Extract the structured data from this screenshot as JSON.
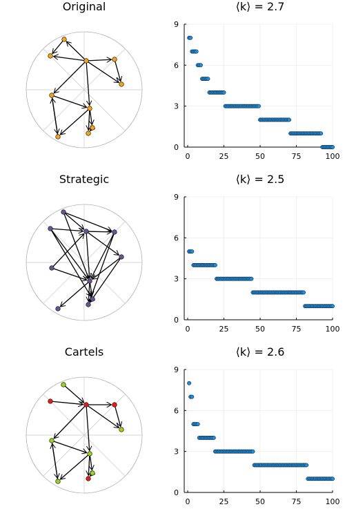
{
  "figure": {
    "network_panels": [
      {
        "title": "Original",
        "node_colors": [
          "#f5a319",
          "#f5a319",
          "#f5a319",
          "#f5a319",
          "#f5a319",
          "#f5a319",
          "#f5a319",
          "#f5a319",
          "#f5a319"
        ]
      },
      {
        "title": "Strategic",
        "node_colors": [
          "#6a5496",
          "#6a5496",
          "#6a5496",
          "#6a5496",
          "#6a5496",
          "#6a5496",
          "#6a5496",
          "#6a5496",
          "#6a5496"
        ]
      },
      {
        "title": "Cartels",
        "node_colors": [
          "#9bd31a",
          "#e81b1b",
          "#e81b1b",
          "#e81b1b",
          "#9bd31a",
          "#9bd31a",
          "#9bd31a",
          "#9bd31a",
          "#e81b1b",
          "#9bd31a"
        ]
      }
    ],
    "marker_color": "#1e8fe0",
    "grid_color": "#e6e6e6"
  },
  "chart_data": [
    {
      "type": "scatter",
      "title": "⟨k⟩ = 2.7",
      "xlabel": "",
      "ylabel": "",
      "xlim": [
        0,
        100
      ],
      "ylim": [
        0,
        9
      ],
      "xticks": [
        "0",
        "25",
        "50",
        "75",
        "100"
      ],
      "yticks": [
        "0",
        "3",
        "6",
        "9"
      ],
      "grid": true,
      "segments": [
        {
          "from": 1,
          "to": 2,
          "value": 8
        },
        {
          "from": 3,
          "to": 6,
          "value": 7
        },
        {
          "from": 7,
          "to": 9,
          "value": 6
        },
        {
          "from": 10,
          "to": 14,
          "value": 5
        },
        {
          "from": 15,
          "to": 25,
          "value": 4
        },
        {
          "from": 26,
          "to": 49,
          "value": 3
        },
        {
          "from": 50,
          "to": 70,
          "value": 2
        },
        {
          "from": 71,
          "to": 92,
          "value": 1
        },
        {
          "from": 93,
          "to": 100,
          "value": 0
        }
      ]
    },
    {
      "type": "scatter",
      "title": "⟨k⟩ = 2.5",
      "xlabel": "",
      "ylabel": "",
      "xlim": [
        0,
        100
      ],
      "ylim": [
        0,
        9
      ],
      "xticks": [
        "0",
        "25",
        "50",
        "75",
        "100"
      ],
      "yticks": [
        "0",
        "3",
        "6",
        "9"
      ],
      "grid": true,
      "segments": [
        {
          "from": 1,
          "to": 3,
          "value": 5
        },
        {
          "from": 4,
          "to": 19,
          "value": 4
        },
        {
          "from": 20,
          "to": 44,
          "value": 3
        },
        {
          "from": 45,
          "to": 80,
          "value": 2
        },
        {
          "from": 81,
          "to": 100,
          "value": 1
        }
      ]
    },
    {
      "type": "scatter",
      "title": "⟨k⟩ = 2.6",
      "xlabel": "",
      "ylabel": "",
      "xlim": [
        0,
        100
      ],
      "ylim": [
        0,
        9
      ],
      "xticks": [
        "0",
        "25",
        "50",
        "75",
        "100"
      ],
      "yticks": [
        "0",
        "3",
        "6",
        "9"
      ],
      "grid": true,
      "segments": [
        {
          "from": 1,
          "to": 1,
          "value": 8
        },
        {
          "from": 2,
          "to": 3,
          "value": 7
        },
        {
          "from": 4,
          "to": 7,
          "value": 5
        },
        {
          "from": 8,
          "to": 18,
          "value": 4
        },
        {
          "from": 19,
          "to": 45,
          "value": 3
        },
        {
          "from": 46,
          "to": 82,
          "value": 2
        },
        {
          "from": 83,
          "to": 100,
          "value": 1
        }
      ]
    }
  ]
}
